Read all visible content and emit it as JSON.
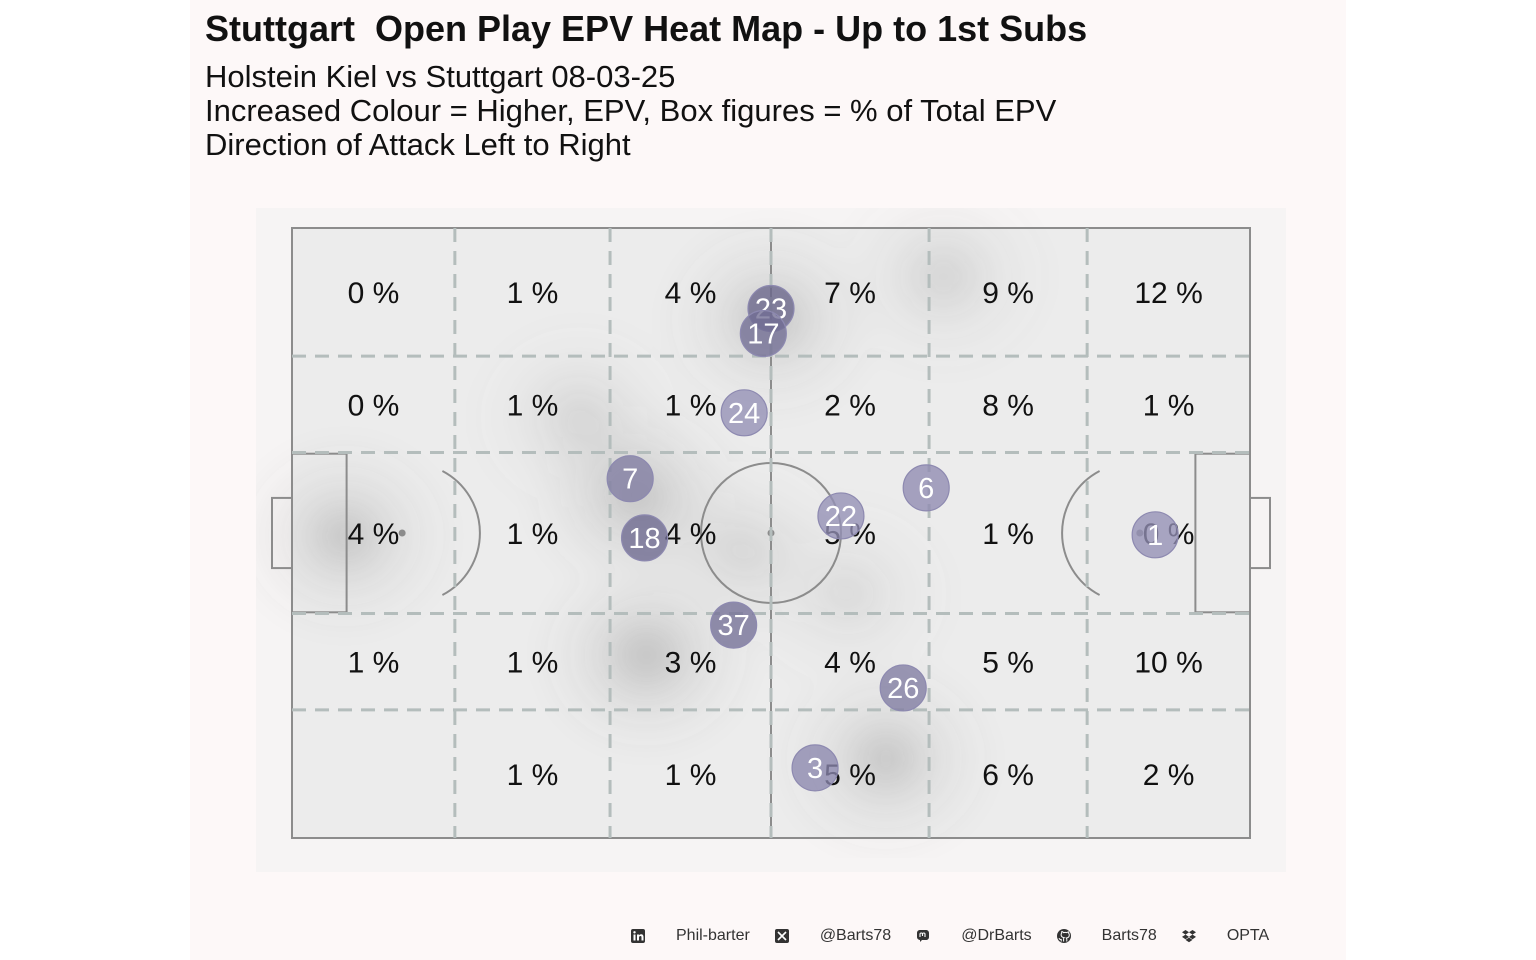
{
  "title": "Stuttgart  Open Play EPV Heat Map - Up to 1st Subs",
  "subtitle_lines": [
    "Holstein Kiel vs Stuttgart 08-03-25",
    "Increased Colour = Higher, EPV, Box figures = % of Total EPV",
    "Direction of Attack Left to Right"
  ],
  "chart_data": {
    "type": "heatmap",
    "title": "Stuttgart  Open Play EPV Heat Map - Up to 1st Subs",
    "zone_columns": 6,
    "zone_rows": 5,
    "zones": [
      [
        "0 %",
        "1 %",
        "4 %",
        "7 %",
        "9 %",
        "12 %"
      ],
      [
        "0 %",
        "1 %",
        "1 %",
        "2 %",
        "8 %",
        "1 %"
      ],
      [
        "4 %",
        "1 %",
        "4 %",
        "5 %",
        "1 %",
        "0 %"
      ],
      [
        "1 %",
        "1 %",
        "3 %",
        "4 %",
        "5 %",
        "10 %"
      ],
      [
        "",
        "1 %",
        "1 %",
        "5 %",
        "6 %",
        "2 %"
      ]
    ],
    "players": [
      {
        "number": "23",
        "x": 50,
        "y": 86.8,
        "shade": 0.85
      },
      {
        "number": "17",
        "x": 49.2,
        "y": 82.7,
        "shade": 0.75
      },
      {
        "number": "24",
        "x": 47.2,
        "y": 69.7,
        "shade": 0.3
      },
      {
        "number": "7",
        "x": 35.3,
        "y": 58.9,
        "shade": 0.55
      },
      {
        "number": "6",
        "x": 66.2,
        "y": 57.4,
        "shade": 0.35
      },
      {
        "number": "22",
        "x": 57.3,
        "y": 52.8,
        "shade": 0.3
      },
      {
        "number": "18",
        "x": 36.8,
        "y": 49.2,
        "shade": 0.8
      },
      {
        "number": "1",
        "x": 90.1,
        "y": 49.7,
        "shade": 0.3
      },
      {
        "number": "37",
        "x": 46.1,
        "y": 34.9,
        "shade": 0.7
      },
      {
        "number": "26",
        "x": 63.8,
        "y": 24.6,
        "shade": 0.55
      },
      {
        "number": "3",
        "x": 54.6,
        "y": 11.5,
        "shade": 0.4
      }
    ],
    "density_blobs": [
      {
        "x": 5.5,
        "y": 49.5,
        "strength": 0.55
      },
      {
        "x": 36,
        "y": 56,
        "strength": 0.6
      },
      {
        "x": 37,
        "y": 30,
        "strength": 0.65
      },
      {
        "x": 50,
        "y": 85,
        "strength": 0.55
      },
      {
        "x": 68,
        "y": 92,
        "strength": 0.35
      },
      {
        "x": 62,
        "y": 13,
        "strength": 0.55
      },
      {
        "x": 30,
        "y": 69,
        "strength": 0.3
      },
      {
        "x": 47,
        "y": 47,
        "strength": 0.3
      },
      {
        "x": 58,
        "y": 40,
        "strength": 0.25
      }
    ],
    "colors": {
      "pitch": "#ececec",
      "lines": "#8c8c8c",
      "zone_lines": "#b4bdbc",
      "player_light": "#aaa6cc",
      "player_dark": "#5e5a80"
    }
  },
  "footer": [
    {
      "icon": "linkedin-icon",
      "label": "Phil-barter"
    },
    {
      "icon": "x-twitter-icon",
      "label": "@Barts78"
    },
    {
      "icon": "mastodon-icon",
      "label": "@DrBarts"
    },
    {
      "icon": "github-icon",
      "label": "Barts78"
    },
    {
      "icon": "dropbox-icon",
      "label": "OPTA"
    }
  ]
}
